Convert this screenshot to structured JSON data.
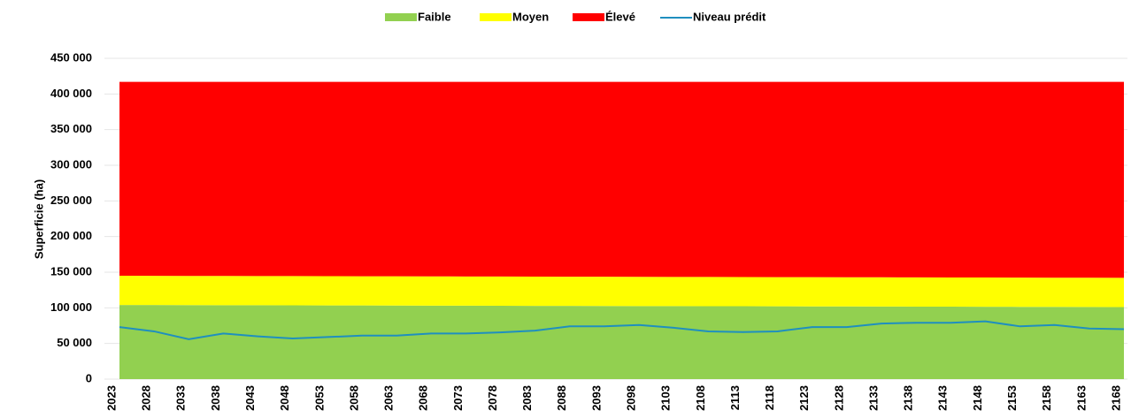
{
  "chart_data": {
    "type": "stacked-area-line",
    "y_label": "Superficie (ha)",
    "categories": [
      "2023",
      "2028",
      "2033",
      "2038",
      "2043",
      "2048",
      "2053",
      "2058",
      "2063",
      "2068",
      "2073",
      "2078",
      "2083",
      "2088",
      "2093",
      "2098",
      "2103",
      "2108",
      "2113",
      "2118",
      "2123",
      "2128",
      "2133",
      "2138",
      "2143",
      "2148",
      "2153",
      "2158",
      "2163",
      "2168"
    ],
    "series": [
      {
        "name": "Faible",
        "color": "#92d050",
        "kind": "area",
        "values": [
          104000,
          103900,
          103800,
          103700,
          103600,
          103500,
          103400,
          103300,
          103200,
          103100,
          103000,
          102900,
          102800,
          102700,
          102600,
          102500,
          102400,
          102300,
          102200,
          102100,
          102000,
          101900,
          101800,
          101700,
          101600,
          101500,
          101400,
          101300,
          101200,
          101100
        ]
      },
      {
        "name": "Moyen",
        "color": "#ffff00",
        "kind": "area",
        "values": [
          41000,
          41000,
          41000,
          41000,
          41000,
          41000,
          41000,
          41000,
          41000,
          41000,
          41000,
          41000,
          41000,
          41000,
          41000,
          41000,
          41000,
          41000,
          41000,
          41000,
          41000,
          41000,
          41000,
          41000,
          41000,
          41000,
          41000,
          41000,
          41000,
          41000
        ]
      },
      {
        "name": "Élevé",
        "color": "#ff0000",
        "kind": "area",
        "values": [
          272000,
          272100,
          272200,
          272300,
          272400,
          272500,
          272600,
          272700,
          272800,
          272900,
          273000,
          273100,
          273200,
          273300,
          273400,
          273500,
          273600,
          273700,
          273800,
          273900,
          274000,
          274100,
          274200,
          274300,
          274400,
          274500,
          274600,
          274700,
          274800,
          274900
        ]
      },
      {
        "name": "Niveau prédit",
        "color": "#1f8fbf",
        "kind": "line",
        "values": [
          73000,
          67000,
          56000,
          64000,
          60000,
          57000,
          59000,
          61000,
          61000,
          64000,
          64000,
          65500,
          68000,
          74000,
          74000,
          76000,
          72000,
          67000,
          66000,
          67000,
          73000,
          73000,
          78000,
          79000,
          79000,
          81000,
          74000,
          76000,
          71000,
          70000
        ]
      }
    ],
    "ylim": [
      0,
      450000
    ],
    "yticks": [
      0,
      {
        "value": 50000,
        "label": "50 000"
      },
      {
        "value": 100000,
        "label": "100 000"
      },
      {
        "value": 150000,
        "label": "150 000"
      },
      {
        "value": 200000,
        "label": "200 000"
      },
      {
        "value": 250000,
        "label": "250 000"
      },
      {
        "value": 300000,
        "label": "300 000"
      },
      {
        "value": 350000,
        "label": "350 000"
      },
      {
        "value": 400000,
        "label": "400 000"
      },
      {
        "value": 450000,
        "label": "450 000"
      }
    ],
    "grid": true,
    "legend": "top"
  }
}
